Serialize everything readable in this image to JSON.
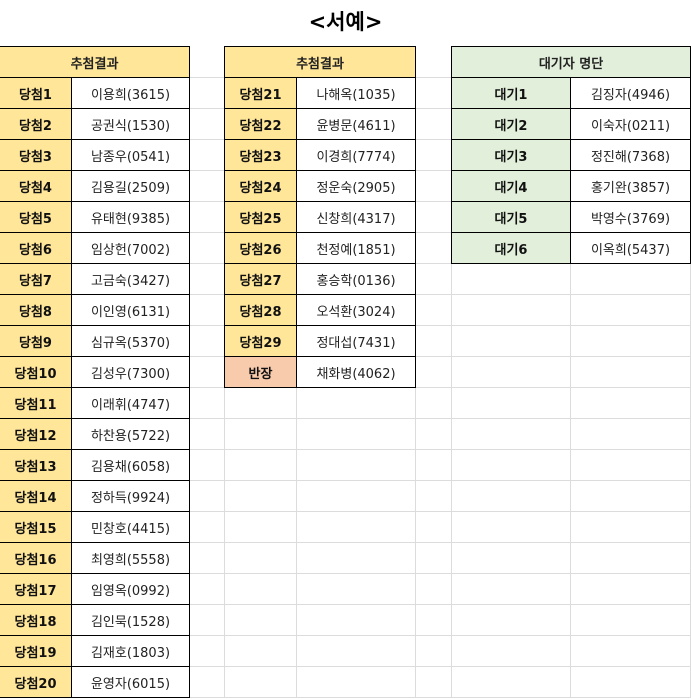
{
  "title": "<서예>",
  "colors": {
    "winner": "#ffe699",
    "waitlist": "#e2efda",
    "leader": "#f8cbad"
  },
  "table1": {
    "header": "추첨결과",
    "rows": [
      {
        "label": "당첨1",
        "name": "이용희(3615)"
      },
      {
        "label": "당첨2",
        "name": "공권식(1530)"
      },
      {
        "label": "당첨3",
        "name": "남종우(0541)"
      },
      {
        "label": "당첨4",
        "name": "김용길(2509)"
      },
      {
        "label": "당첨5",
        "name": "유태현(9385)"
      },
      {
        "label": "당첨6",
        "name": "임상헌(7002)"
      },
      {
        "label": "당첨7",
        "name": "고금숙(3427)"
      },
      {
        "label": "당첨8",
        "name": "이인영(6131)"
      },
      {
        "label": "당첨9",
        "name": "심규옥(5370)"
      },
      {
        "label": "당첨10",
        "name": "김성우(7300)"
      },
      {
        "label": "당첨11",
        "name": "이래휘(4747)"
      },
      {
        "label": "당첨12",
        "name": "하찬용(5722)"
      },
      {
        "label": "당첨13",
        "name": "김용채(6058)"
      },
      {
        "label": "당첨14",
        "name": "정하득(9924)"
      },
      {
        "label": "당첨15",
        "name": "민창호(4415)"
      },
      {
        "label": "당첨16",
        "name": "최영희(5558)"
      },
      {
        "label": "당첨17",
        "name": "임영옥(0992)"
      },
      {
        "label": "당첨18",
        "name": "김인묵(1528)"
      },
      {
        "label": "당첨19",
        "name": "김재호(1803)"
      },
      {
        "label": "당첨20",
        "name": "윤영자(6015)"
      }
    ]
  },
  "table2": {
    "header": "추첨결과",
    "rows": [
      {
        "label": "당첨21",
        "name": "나해옥(1035)"
      },
      {
        "label": "당첨22",
        "name": "윤병문(4611)"
      },
      {
        "label": "당첨23",
        "name": "이경희(7774)"
      },
      {
        "label": "당첨24",
        "name": "정운숙(2905)"
      },
      {
        "label": "당첨25",
        "name": "신창희(4317)"
      },
      {
        "label": "당첨26",
        "name": "천정예(1851)"
      },
      {
        "label": "당첨27",
        "name": "홍승학(0136)"
      },
      {
        "label": "당첨28",
        "name": "오석환(3024)"
      },
      {
        "label": "당첨29",
        "name": "정대섭(7431)"
      },
      {
        "label": "반장",
        "name": "채화병(4062)",
        "leader": true
      }
    ]
  },
  "table3": {
    "header": "대기자 명단",
    "rows": [
      {
        "label": "대기1",
        "name": "김징자(4946)"
      },
      {
        "label": "대기2",
        "name": "이숙자(0211)"
      },
      {
        "label": "대기3",
        "name": "정진해(7368)"
      },
      {
        "label": "대기4",
        "name": "홍기완(3857)"
      },
      {
        "label": "대기5",
        "name": "박영수(3769)"
      },
      {
        "label": "대기6",
        "name": "이옥희(5437)"
      }
    ]
  }
}
